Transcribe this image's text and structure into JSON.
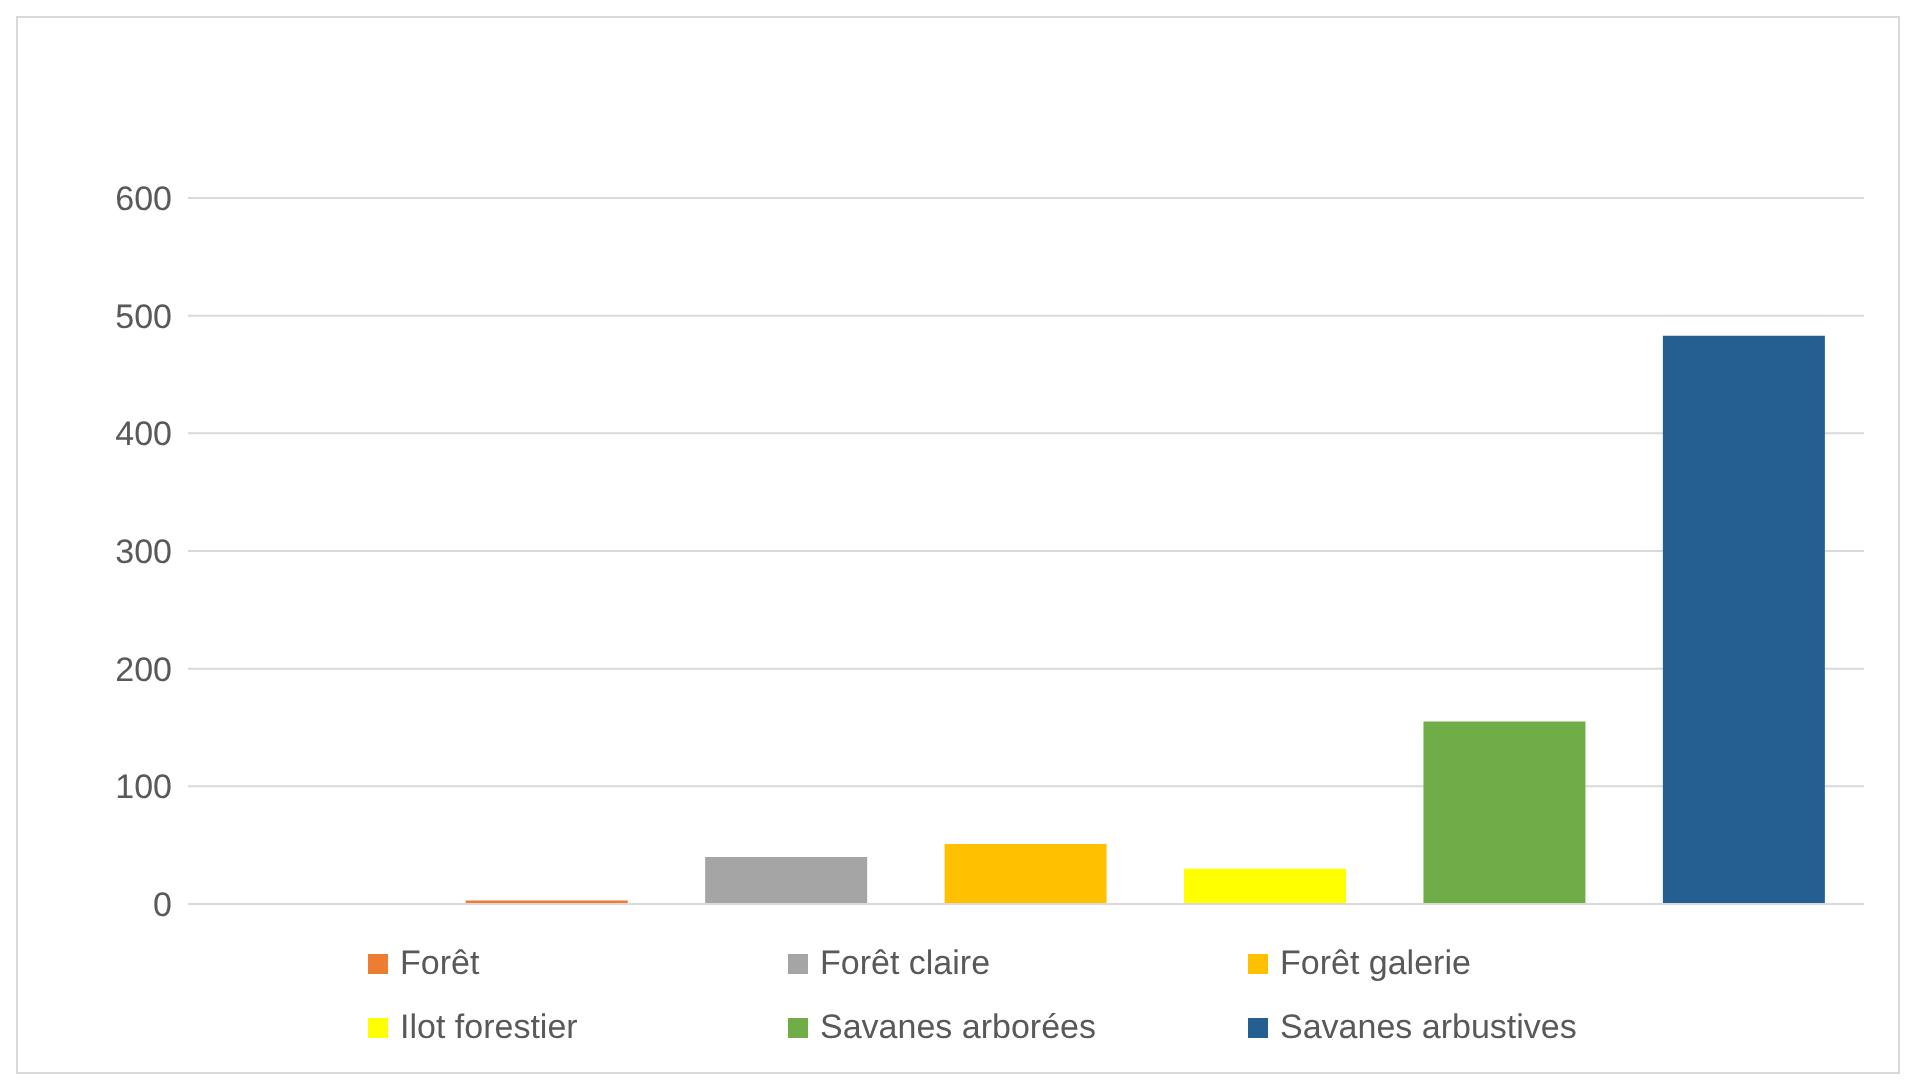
{
  "chart_data": {
    "type": "bar",
    "stacked": true,
    "categories": [
      null,
      null,
      null,
      null,
      null,
      null,
      null
    ],
    "series": [
      {
        "name": "Forêt",
        "color": "#ed7d31",
        "values": [
          null,
          3,
          null,
          null,
          null,
          null,
          null
        ]
      },
      {
        "name": "Forêt claire",
        "color": "#a5a5a5",
        "values": [
          null,
          null,
          40,
          null,
          null,
          null,
          null
        ]
      },
      {
        "name": "Forêt galerie",
        "color": "#ffc000",
        "values": [
          null,
          null,
          null,
          51,
          null,
          null,
          null
        ]
      },
      {
        "name": "Ilot forestier",
        "color": "#ffff00",
        "values": [
          null,
          null,
          null,
          null,
          30,
          null,
          null
        ]
      },
      {
        "name": "Savanes arborées",
        "color": "#70ad47",
        "values": [
          null,
          null,
          null,
          null,
          null,
          155,
          null
        ]
      },
      {
        "name": "Savanes arbustives",
        "color": "#255e91",
        "values": [
          null,
          null,
          null,
          null,
          null,
          null,
          483
        ]
      }
    ],
    "ylim": [
      0,
      600
    ],
    "yticks": [
      0,
      100,
      200,
      300,
      400,
      500,
      600
    ],
    "grid": "y",
    "legend": "bottom"
  }
}
